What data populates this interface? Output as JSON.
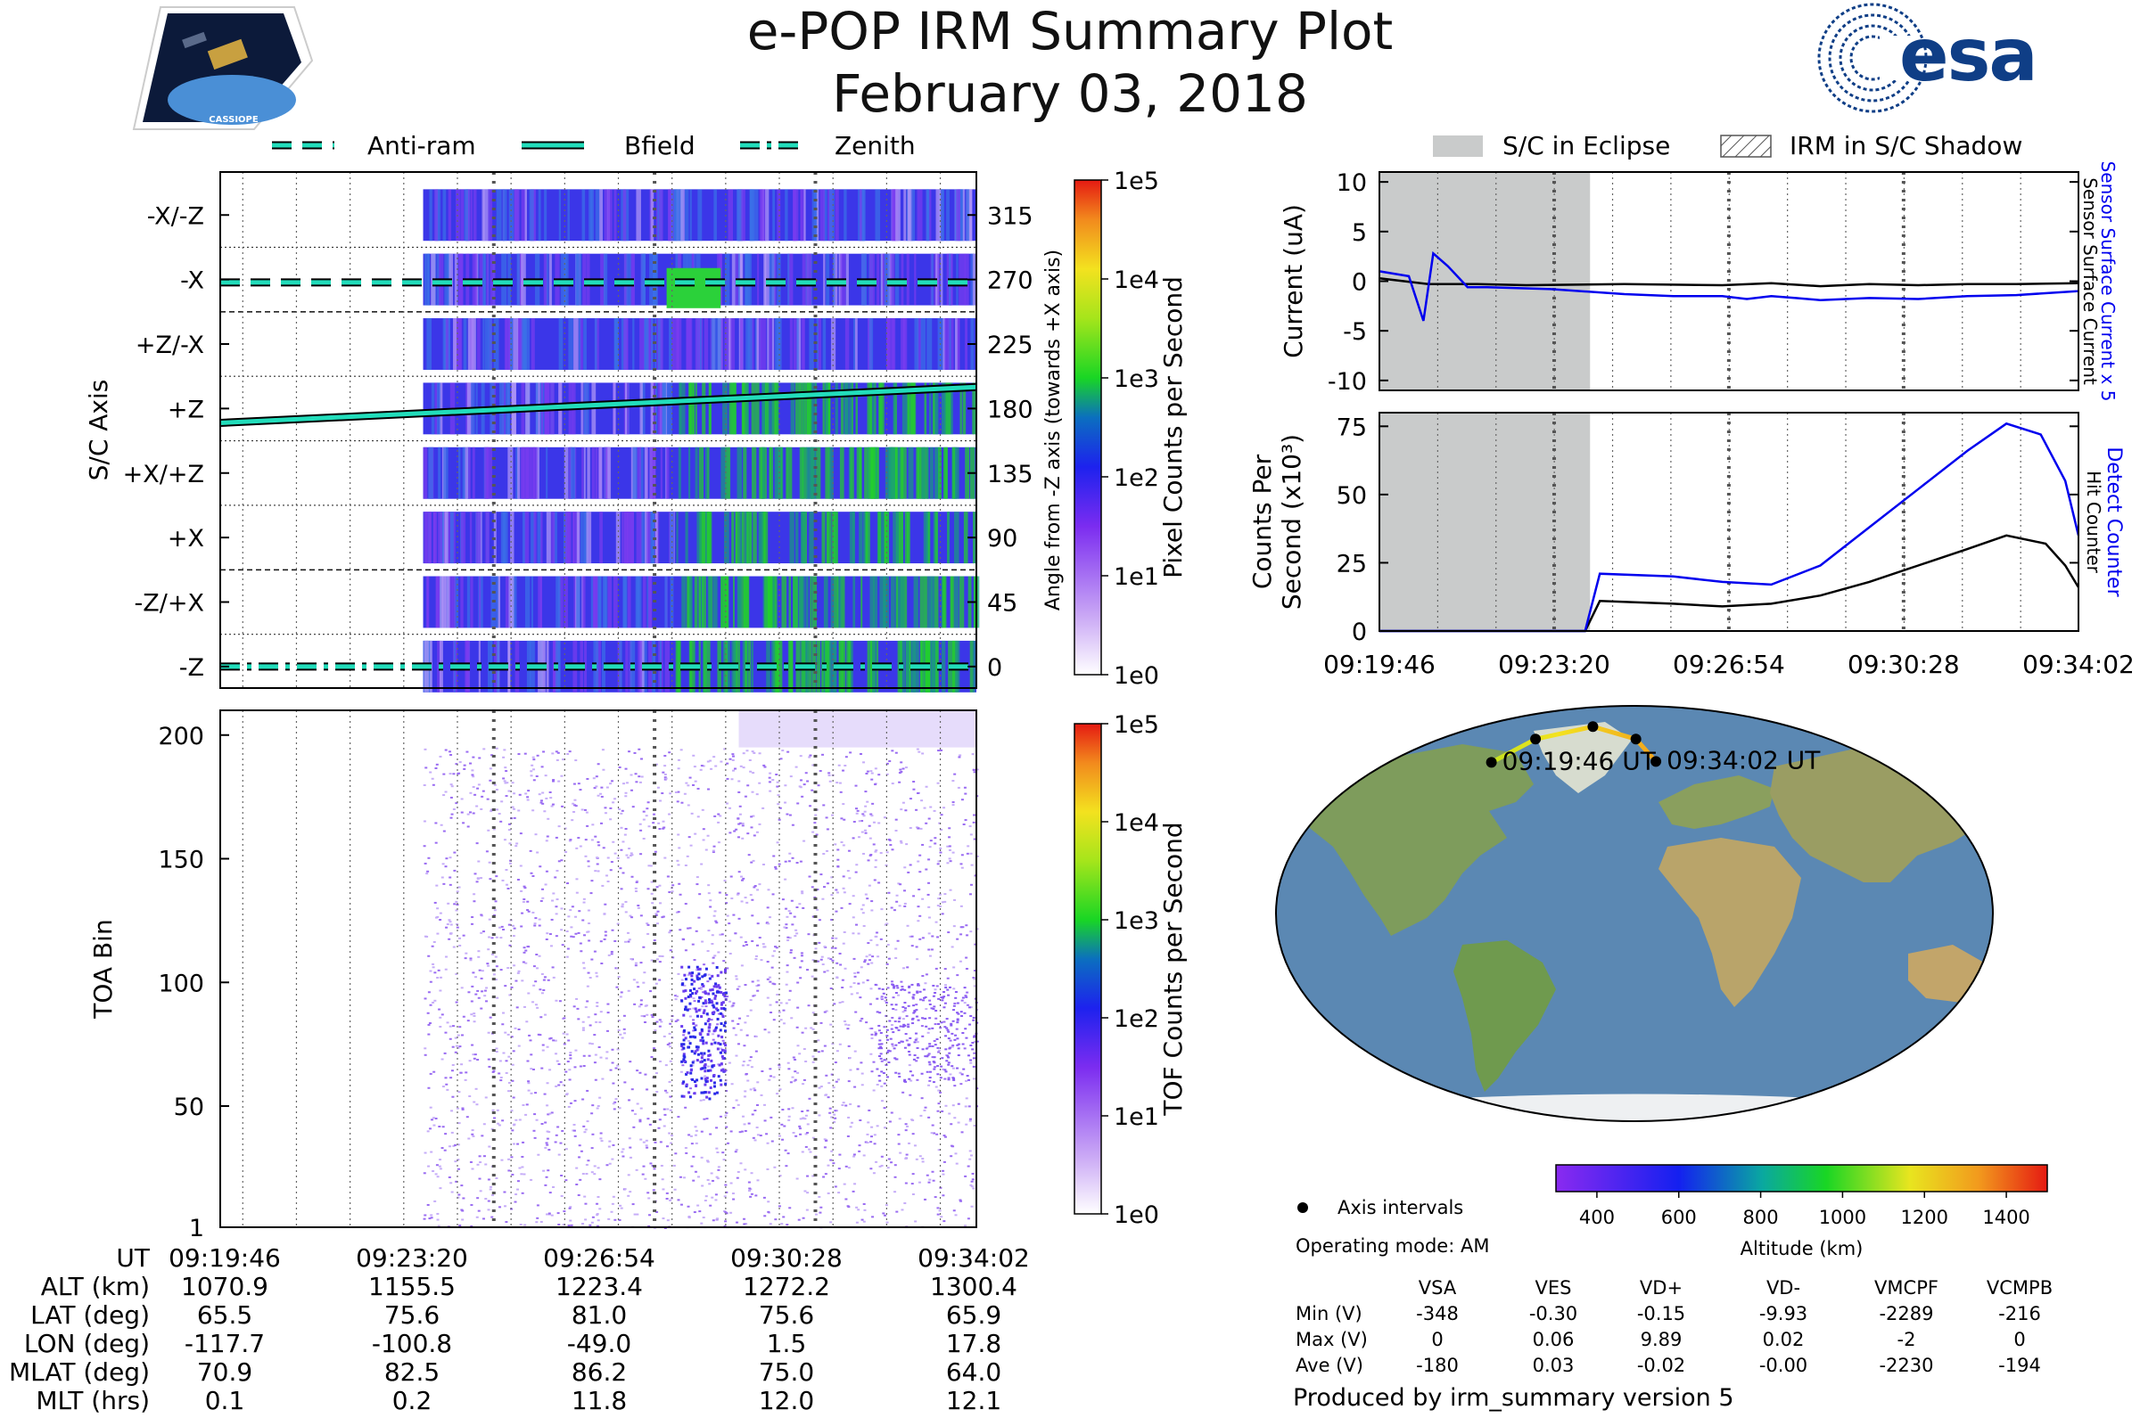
{
  "header": {
    "title": "e-POP IRM Summary Plot",
    "date": "February 03, 2018",
    "mission_badge_text": "CASSIOPE",
    "agency_logo_text": "esa"
  },
  "colors": {
    "brand_blue": "#0f3e86",
    "sensor_blue": "#0000ee",
    "cyan_line": "#22ddbb",
    "eclipse_gray": "#c9cbcb",
    "ocean": "#5b88b3",
    "land": "#7d9d5e"
  },
  "legend_top_left": [
    {
      "label": "Anti-ram",
      "style": "dashed"
    },
    {
      "label": "Bfield",
      "style": "solid"
    },
    {
      "label": "Zenith",
      "style": "dashdot"
    }
  ],
  "legend_top_right": [
    {
      "label": "S/C in Eclipse",
      "style": "gray-patch"
    },
    {
      "label": "IRM in S/C Shadow",
      "style": "hatched-patch"
    }
  ],
  "time_ticks": [
    "09:19:46",
    "09:23:20",
    "09:26:54",
    "09:30:28",
    "09:34:02"
  ],
  "chart_data": [
    {
      "type": "heatmap",
      "id": "sc-axis-spectrogram",
      "title": "",
      "ylabel": "S/C Axis",
      "ylabel_right": "Angle from -Z axis (towards +X axis)",
      "left_tick_labels": [
        "-X/-Z",
        "-X",
        "+Z/-X",
        "+Z",
        "+X/+Z",
        "+X",
        "-Z/+X",
        "-Z"
      ],
      "right_tick_labels": [
        "315",
        "270",
        "225",
        "180",
        "135",
        "90",
        "45",
        "0"
      ],
      "ylim": [
        -15,
        345
      ],
      "xlim_minutes": [
        -2.5,
        14.27
      ],
      "data_start_minutes": 2.0,
      "colorbar": {
        "label": "Pixel Counts per Second",
        "ticks": [
          "1e5",
          "1e4",
          "1e3",
          "1e2",
          "1e1",
          "1e0"
        ]
      },
      "overlay_lines": [
        {
          "name": "Anti-ram",
          "angle_deg": 268
        },
        {
          "name": "Bfield",
          "angle_start_deg": 170,
          "angle_end_deg": 195
        },
        {
          "name": "Zenith",
          "angle_deg": 0
        }
      ]
    },
    {
      "type": "heatmap",
      "id": "toa-spectrogram",
      "ylabel": "TOA Bin",
      "yticks": [
        "200",
        "150",
        "100",
        "50",
        "1"
      ],
      "ylim": [
        1,
        210
      ],
      "colorbar": {
        "label": "TOF Counts per Second",
        "ticks": [
          "1e5",
          "1e4",
          "1e3",
          "1e2",
          "1e1",
          "1e0"
        ]
      },
      "hotspot": {
        "time_minutes": 8.2,
        "toa_bin": 80
      }
    },
    {
      "type": "line",
      "id": "current-plot",
      "ylabel": "Current (uA)",
      "ylim": [
        -11,
        11
      ],
      "yticks": [
        "10",
        "5",
        "0",
        "-5",
        "-10"
      ],
      "right_labels": [
        "Sensor Surface Current x 5",
        "Sensor Surface Current"
      ],
      "eclipse_minutes": [
        0,
        4.3
      ],
      "series": [
        {
          "name": "Sensor Surface Current",
          "color": "#000000",
          "x": [
            0,
            1.0,
            2.0,
            3.0,
            5,
            7,
            8,
            9,
            10,
            11,
            12,
            13,
            14.27
          ],
          "values": [
            0.3,
            -0.3,
            -0.3,
            -0.4,
            -0.3,
            -0.4,
            -0.2,
            -0.5,
            -0.3,
            -0.4,
            -0.3,
            -0.3,
            -0.2
          ]
        },
        {
          "name": "Sensor Surface Current x 5",
          "color": "#0000ee",
          "x": [
            0,
            0.6,
            0.9,
            1.1,
            1.4,
            1.8,
            2.2,
            3.5,
            5,
            6,
            7,
            7.5,
            8.0,
            8.5,
            9,
            10,
            11,
            12,
            13,
            14.27
          ],
          "values": [
            1.0,
            0.5,
            -4.0,
            2.8,
            1.5,
            -0.6,
            -0.6,
            -0.8,
            -1.3,
            -1.5,
            -1.5,
            -1.8,
            -1.5,
            -1.7,
            -1.9,
            -1.7,
            -1.8,
            -1.5,
            -1.4,
            -1.0
          ]
        }
      ]
    },
    {
      "type": "line",
      "id": "counts-plot",
      "ylabel": "Counts Per Second (x10³)",
      "ylim": [
        0,
        80
      ],
      "yticks": [
        "75",
        "50",
        "25",
        "0"
      ],
      "right_labels": [
        "Detect Counter",
        "Hit Counter"
      ],
      "eclipse_minutes": [
        0,
        4.3
      ],
      "series": [
        {
          "name": "Hit Counter",
          "color": "#000000",
          "x": [
            0,
            4.2,
            4.5,
            6,
            7,
            8,
            9,
            10,
            11,
            12,
            12.8,
            13.6,
            14.0,
            14.27
          ],
          "values": [
            0,
            0,
            11,
            10,
            9,
            10,
            13,
            18,
            24,
            30,
            35,
            32,
            24,
            16
          ]
        },
        {
          "name": "Detect Counter",
          "color": "#0000ee",
          "x": [
            0,
            4.2,
            4.5,
            6,
            7,
            8,
            9,
            10,
            11,
            12,
            12.8,
            13.5,
            14.0,
            14.27
          ],
          "values": [
            0,
            0,
            21,
            20,
            18,
            17,
            24,
            38,
            52,
            66,
            76,
            72,
            55,
            35
          ]
        }
      ]
    },
    {
      "type": "scatter",
      "id": "orbit-map",
      "colorbar": {
        "label": "Altitude (km)",
        "ticks": [
          "400",
          "600",
          "800",
          "1000",
          "1200",
          "1400"
        ],
        "range": [
          300,
          1500
        ]
      },
      "track_labels": [
        "09:19:46 UT",
        "09:34:02 UT"
      ],
      "interval_points": [
        {
          "lon": -117.7,
          "lat": 65.5
        },
        {
          "lon": -100.8,
          "lat": 75.6
        },
        {
          "lon": -49.0,
          "lat": 81.0
        },
        {
          "lon": 1.5,
          "lat": 75.6
        },
        {
          "lon": 17.8,
          "lat": 65.9
        }
      ]
    }
  ],
  "bottom_table": {
    "row_labels": [
      "UT",
      "ALT (km)",
      "LAT (deg)",
      "LON (deg)",
      "MLAT (deg)",
      "MLT (hrs)"
    ],
    "rows": [
      [
        "09:19:46",
        "09:23:20",
        "09:26:54",
        "09:30:28",
        "09:34:02"
      ],
      [
        "1070.9",
        "1155.5",
        "1223.4",
        "1272.2",
        "1300.4"
      ],
      [
        "65.5",
        "75.6",
        "81.0",
        "75.6",
        "65.9"
      ],
      [
        "-117.7",
        "-100.8",
        "-49.0",
        "1.5",
        "17.8"
      ],
      [
        "70.9",
        "82.5",
        "86.2",
        "75.0",
        "64.0"
      ],
      [
        "0.1",
        "0.2",
        "11.8",
        "12.0",
        "12.1"
      ]
    ]
  },
  "info_panel": {
    "axis_intervals_label": "Axis intervals",
    "operating_mode": "Operating mode: AM",
    "voltage_headers": [
      "VSA",
      "VES",
      "VD+",
      "VD-",
      "VMCPF",
      "VCMPB"
    ],
    "voltage_rows": [
      {
        "label": "Min (V)",
        "values": [
          "-348",
          "-0.30",
          "-0.15",
          "-9.93",
          "-2289",
          "-216"
        ]
      },
      {
        "label": "Max (V)",
        "values": [
          "0",
          "0.06",
          "9.89",
          "0.02",
          "-2",
          "0"
        ]
      },
      {
        "label": "Ave (V)",
        "values": [
          "-180",
          "0.03",
          "-0.02",
          "-0.00",
          "-2230",
          "-194"
        ]
      }
    ],
    "produced_by": "Produced by irm_summary version 5"
  }
}
